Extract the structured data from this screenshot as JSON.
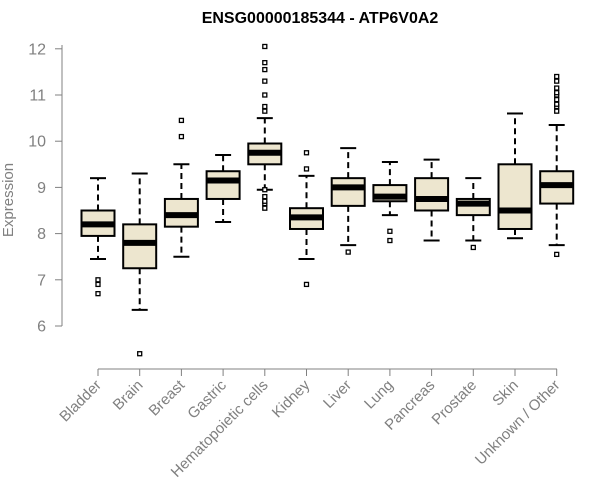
{
  "chart_data": {
    "type": "box",
    "title": "ENSG00000185344 - ATP6V0A2",
    "xlabel": "",
    "ylabel": "Expression",
    "ylim": [
      5.3,
      12.15
    ],
    "yticks": [
      6,
      7,
      8,
      9,
      10,
      11,
      12
    ],
    "grid": false,
    "box_fill": "#ede6cf",
    "categories": [
      "Bladder",
      "Brain",
      "Breast",
      "Gastric",
      "Hematopoietic cells",
      "Kidney",
      "Liver",
      "Lung",
      "Pancreas",
      "Prostate",
      "Skin",
      "Unknown / Other"
    ],
    "boxes": [
      {
        "whisker_low": 7.45,
        "q1": 7.95,
        "median": 8.2,
        "q3": 8.5,
        "whisker_high": 9.2,
        "outliers": [
          7.0,
          6.9,
          6.7
        ]
      },
      {
        "whisker_low": 6.35,
        "q1": 7.25,
        "median": 7.8,
        "q3": 8.2,
        "whisker_high": 9.3,
        "outliers": [
          5.4
        ]
      },
      {
        "whisker_low": 7.5,
        "q1": 8.15,
        "median": 8.4,
        "q3": 8.75,
        "whisker_high": 9.5,
        "outliers": [
          10.1,
          10.45
        ]
      },
      {
        "whisker_low": 8.25,
        "q1": 8.75,
        "median": 9.15,
        "q3": 9.35,
        "whisker_high": 9.7,
        "outliers": []
      },
      {
        "whisker_low": 8.95,
        "q1": 9.5,
        "median": 9.75,
        "q3": 9.95,
        "whisker_high": 10.5,
        "outliers": [
          8.55,
          8.65,
          8.7,
          8.8,
          8.95,
          10.65,
          10.75,
          11.0,
          11.3,
          11.55,
          11.7,
          12.05
        ]
      },
      {
        "whisker_low": 7.45,
        "q1": 8.1,
        "median": 8.35,
        "q3": 8.55,
        "whisker_high": 9.25,
        "outliers": [
          6.9,
          9.4,
          9.75
        ]
      },
      {
        "whisker_low": 7.75,
        "q1": 8.6,
        "median": 9.0,
        "q3": 9.2,
        "whisker_high": 9.85,
        "outliers": [
          7.6
        ]
      },
      {
        "whisker_low": 8.4,
        "q1": 8.7,
        "median": 8.8,
        "q3": 9.05,
        "whisker_high": 9.55,
        "outliers": [
          8.05,
          7.85
        ]
      },
      {
        "whisker_low": 7.85,
        "q1": 8.5,
        "median": 8.75,
        "q3": 9.2,
        "whisker_high": 9.6,
        "outliers": []
      },
      {
        "whisker_low": 7.85,
        "q1": 8.4,
        "median": 8.65,
        "q3": 8.75,
        "whisker_high": 9.2,
        "outliers": [
          7.7
        ]
      },
      {
        "whisker_low": 7.9,
        "q1": 8.1,
        "median": 8.5,
        "q3": 9.5,
        "whisker_high": 10.6,
        "outliers": []
      },
      {
        "whisker_low": 7.75,
        "q1": 8.65,
        "median": 9.05,
        "q3": 9.35,
        "whisker_high": 10.35,
        "outliers": [
          7.55,
          10.65,
          10.75,
          10.8,
          10.9,
          11.0,
          11.05,
          11.15,
          11.3,
          11.4
        ]
      }
    ]
  }
}
